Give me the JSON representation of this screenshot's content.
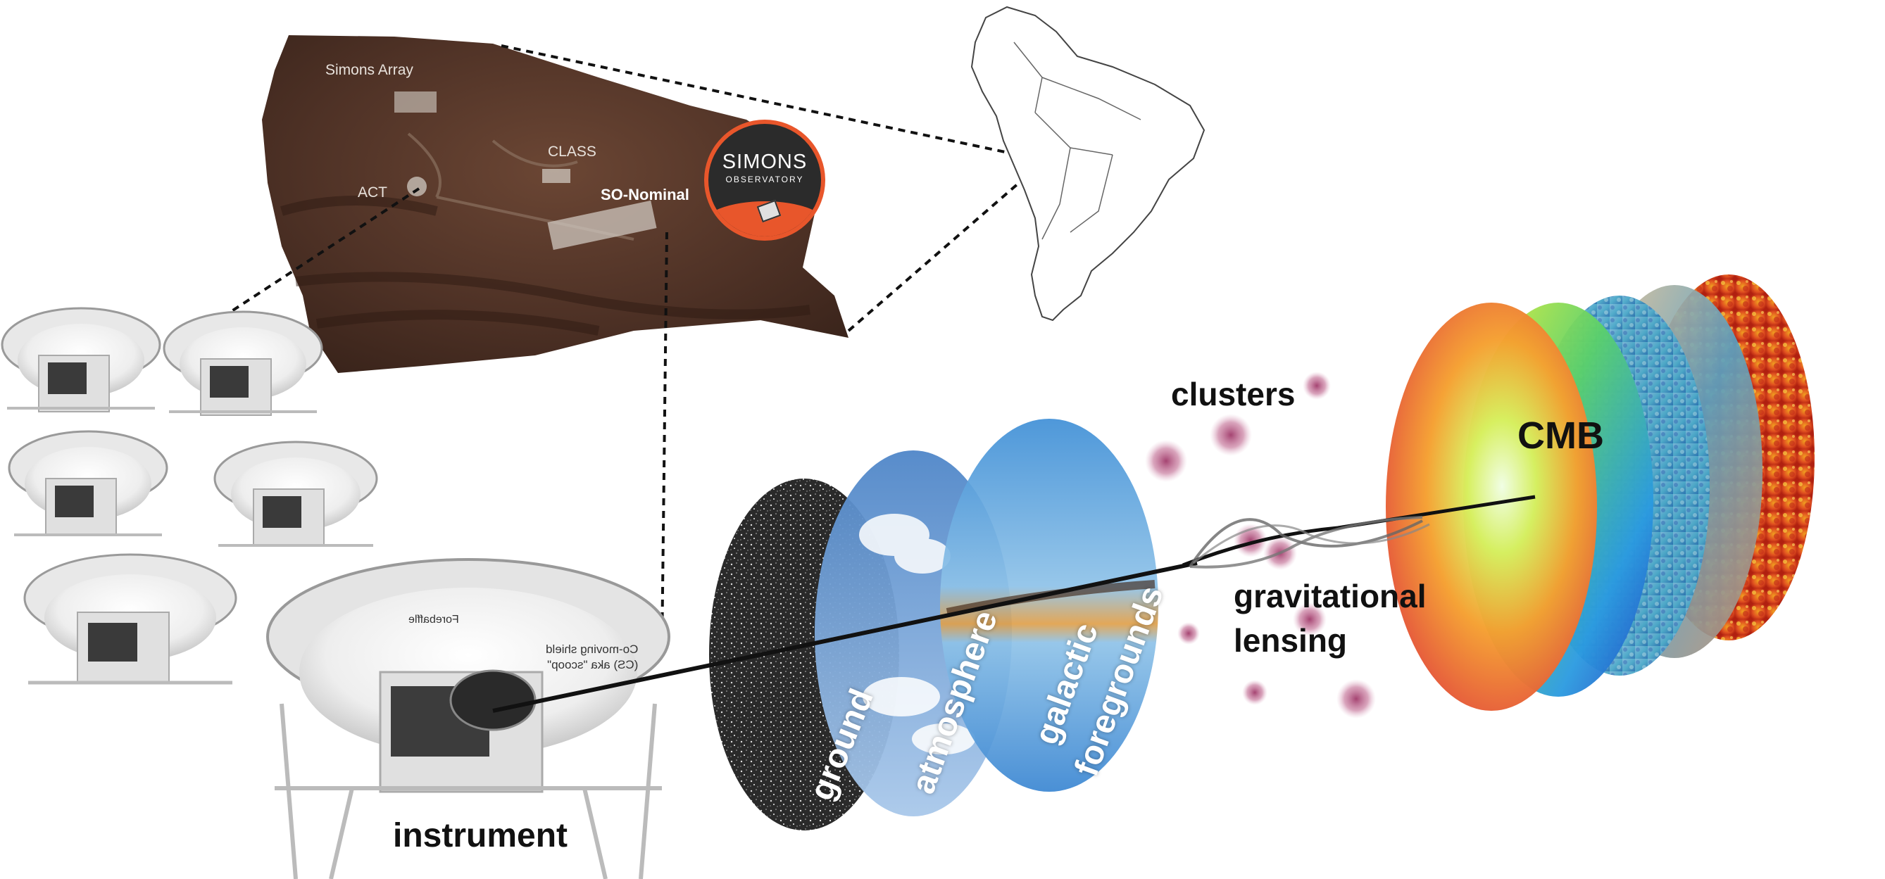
{
  "sites": {
    "simons_array": "Simons Array",
    "class": "CLASS",
    "act": "ACT",
    "so_nominal": "SO-Nominal"
  },
  "logo": {
    "line1": "SIMONS",
    "line2": "OBSERVATORY"
  },
  "telescope_labels": {
    "forebaffle": "Forebaffle",
    "shield_line1": "Co-moving shield",
    "shield_line2": "(CS) aka \"scoop\""
  },
  "labels": {
    "instrument": "instrument",
    "ground": "ground",
    "atmosphere": "atmosphere",
    "galactic": "galactic",
    "foregrounds": "foregrounds",
    "clusters": "clusters",
    "gravitational": "gravitational",
    "lensing": "lensing",
    "cmb": "CMB"
  },
  "colors": {
    "terrain": "#5a3a2c",
    "logo_accent": "#e8562b",
    "cluster_blob": "#b04a78",
    "sky_blue": "#6f9fd8"
  }
}
